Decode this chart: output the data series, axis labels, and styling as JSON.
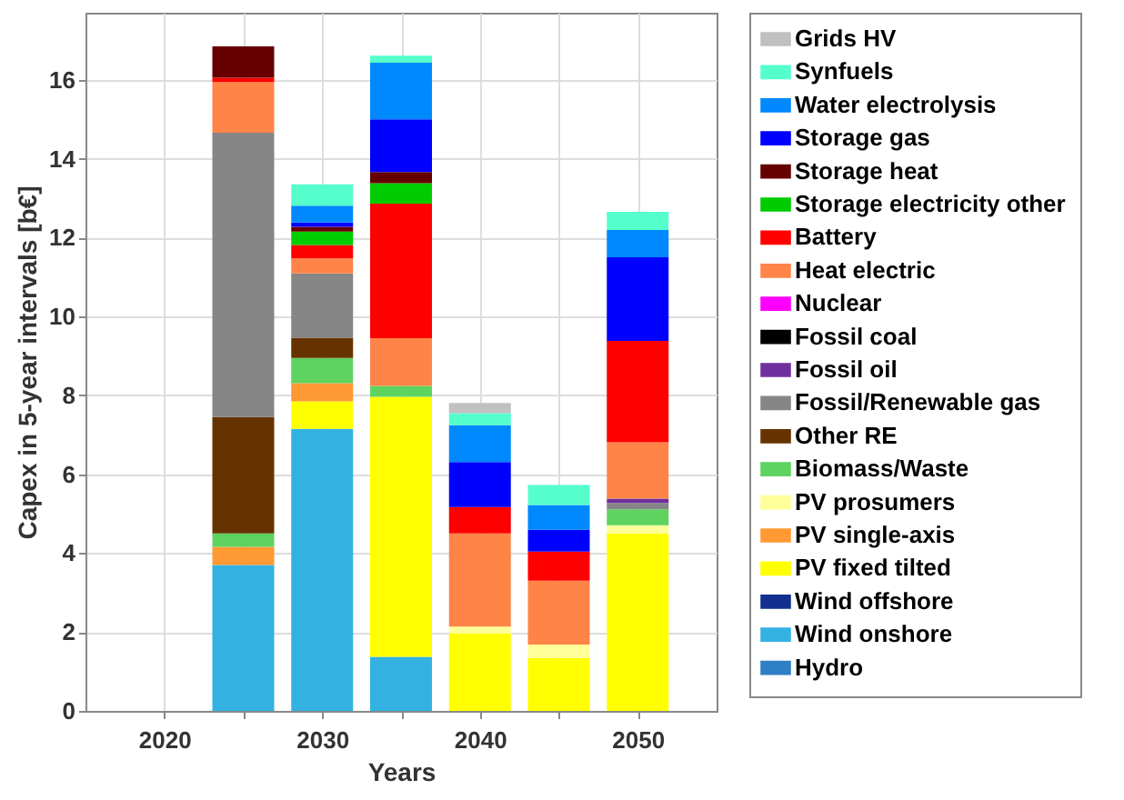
{
  "chart_data": {
    "type": "bar",
    "stacked": true,
    "xlabel": "Years",
    "ylabel": "Capex in 5-year intervals [b€]",
    "x": [
      2025,
      2030,
      2035,
      2040,
      2045,
      2050
    ],
    "xlim": [
      2015,
      2055
    ],
    "xticks": [
      2020,
      {
        "value": 2025,
        "label": null
      },
      2030,
      {
        "value": 2035,
        "label": null
      },
      2040,
      {
        "value": 2045,
        "label": null
      },
      2050
    ],
    "ylim": [
      0,
      17.7
    ],
    "yticks": [
      0,
      2,
      4,
      6,
      8,
      10,
      12,
      14,
      16
    ],
    "grid": true,
    "legend": "right",
    "series": [
      {
        "name": "Hydro",
        "color": "#2f7fc4",
        "values": [
          null,
          null,
          null,
          null,
          null,
          null
        ]
      },
      {
        "name": "Wind onshore",
        "color": "#33b2e2",
        "values": [
          3.7,
          7.15,
          1.37,
          null,
          null,
          null
        ]
      },
      {
        "name": "Wind offshore",
        "color": "#13308f",
        "values": [
          null,
          null,
          null,
          null,
          null,
          null
        ]
      },
      {
        "name": "PV fixed tilted",
        "color": "#ffff00",
        "values": [
          null,
          0.7,
          6.59,
          1.96,
          1.34,
          4.5
        ]
      },
      {
        "name": "PV single-axis",
        "color": "#ff9933",
        "values": [
          0.46,
          0.46,
          null,
          null,
          null,
          null
        ]
      },
      {
        "name": "PV prosumers",
        "color": "#ffff99",
        "values": [
          null,
          null,
          null,
          0.18,
          0.34,
          0.21
        ]
      },
      {
        "name": "Biomass/Waste",
        "color": "#5fd35f",
        "values": [
          0.34,
          0.64,
          0.28,
          null,
          null,
          0.4
        ]
      },
      {
        "name": "Other RE",
        "color": "#663300",
        "values": [
          2.95,
          0.51,
          null,
          null,
          null,
          null
        ]
      },
      {
        "name": "Fossil/Renewable gas",
        "color": "#868686",
        "values": [
          7.21,
          1.63,
          null,
          null,
          null,
          0.16
        ]
      },
      {
        "name": "Fossil oil",
        "color": "#7030a0",
        "values": [
          null,
          null,
          null,
          null,
          null,
          0.11
        ]
      },
      {
        "name": "Fossil coal",
        "color": "#000000",
        "values": [
          null,
          null,
          null,
          null,
          null,
          null
        ]
      },
      {
        "name": "Nuclear",
        "color": "#ff00ff",
        "values": [
          null,
          null,
          null,
          null,
          null,
          null
        ]
      },
      {
        "name": "Heat electric",
        "color": "#ff8447",
        "values": [
          1.28,
          0.38,
          1.21,
          2.36,
          1.62,
          1.43
        ]
      },
      {
        "name": "Battery",
        "color": "#ff0000",
        "values": [
          0.11,
          0.34,
          3.41,
          0.67,
          0.74,
          2.57
        ]
      },
      {
        "name": "Storage electricity other",
        "color": "#00cc00",
        "values": [
          null,
          0.34,
          0.52,
          null,
          null,
          null
        ]
      },
      {
        "name": "Storage heat",
        "color": "#660000",
        "values": [
          0.8,
          0.12,
          0.28,
          null,
          null,
          null
        ]
      },
      {
        "name": "Storage gas",
        "color": "#0000ff",
        "values": [
          null,
          0.11,
          1.34,
          1.14,
          0.55,
          2.12
        ]
      },
      {
        "name": "Water electrolysis",
        "color": "#0088ff",
        "values": [
          null,
          0.43,
          1.43,
          0.93,
          0.63,
          0.69
        ]
      },
      {
        "name": "Synfuels",
        "color": "#55ffcc",
        "values": [
          null,
          0.54,
          0.18,
          0.31,
          0.51,
          0.46
        ]
      },
      {
        "name": "Grids HV",
        "color": "#c0c0c0",
        "values": [
          null,
          null,
          null,
          0.26,
          null,
          null
        ]
      }
    ]
  }
}
